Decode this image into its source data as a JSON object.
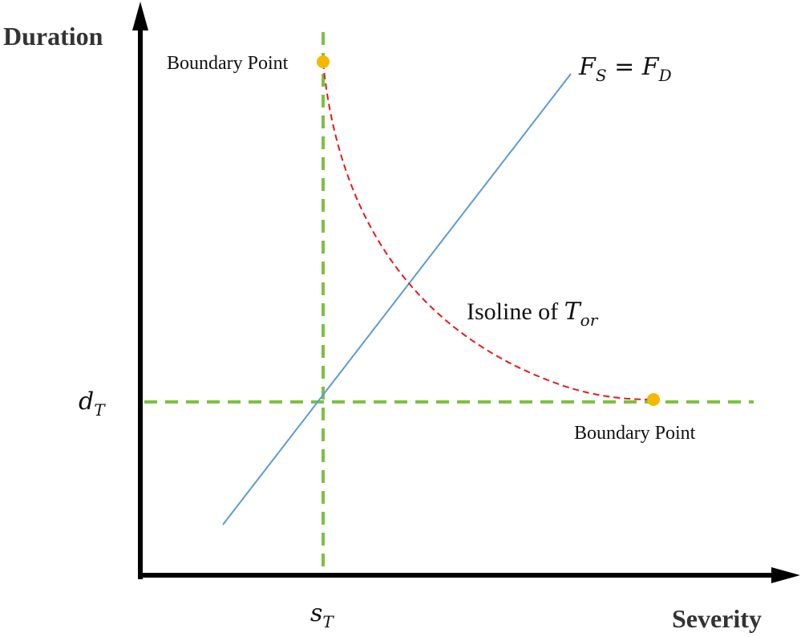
{
  "axes": {
    "x_title": "Severity",
    "y_title": "Duration"
  },
  "thresholds": {
    "x_symbol": "s",
    "x_sub": "T",
    "y_symbol": "d",
    "y_sub": "T"
  },
  "labels": {
    "boundary_point_top": "Boundary Point",
    "boundary_point_bottom": "Boundary Point",
    "isoline_text": "Isoline of ",
    "isoline_symbol": "T",
    "isoline_sub": "or",
    "equality_left": "F",
    "equality_left_sub": "S",
    "equality_op": " = ",
    "equality_right": "F",
    "equality_right_sub": "D"
  },
  "colors": {
    "axis": "#000000",
    "threshold_lines": "#7dc142",
    "equality_line": "#5b9bd5",
    "isoline": "#e41a1c",
    "boundary_points": "#f5b800"
  }
}
